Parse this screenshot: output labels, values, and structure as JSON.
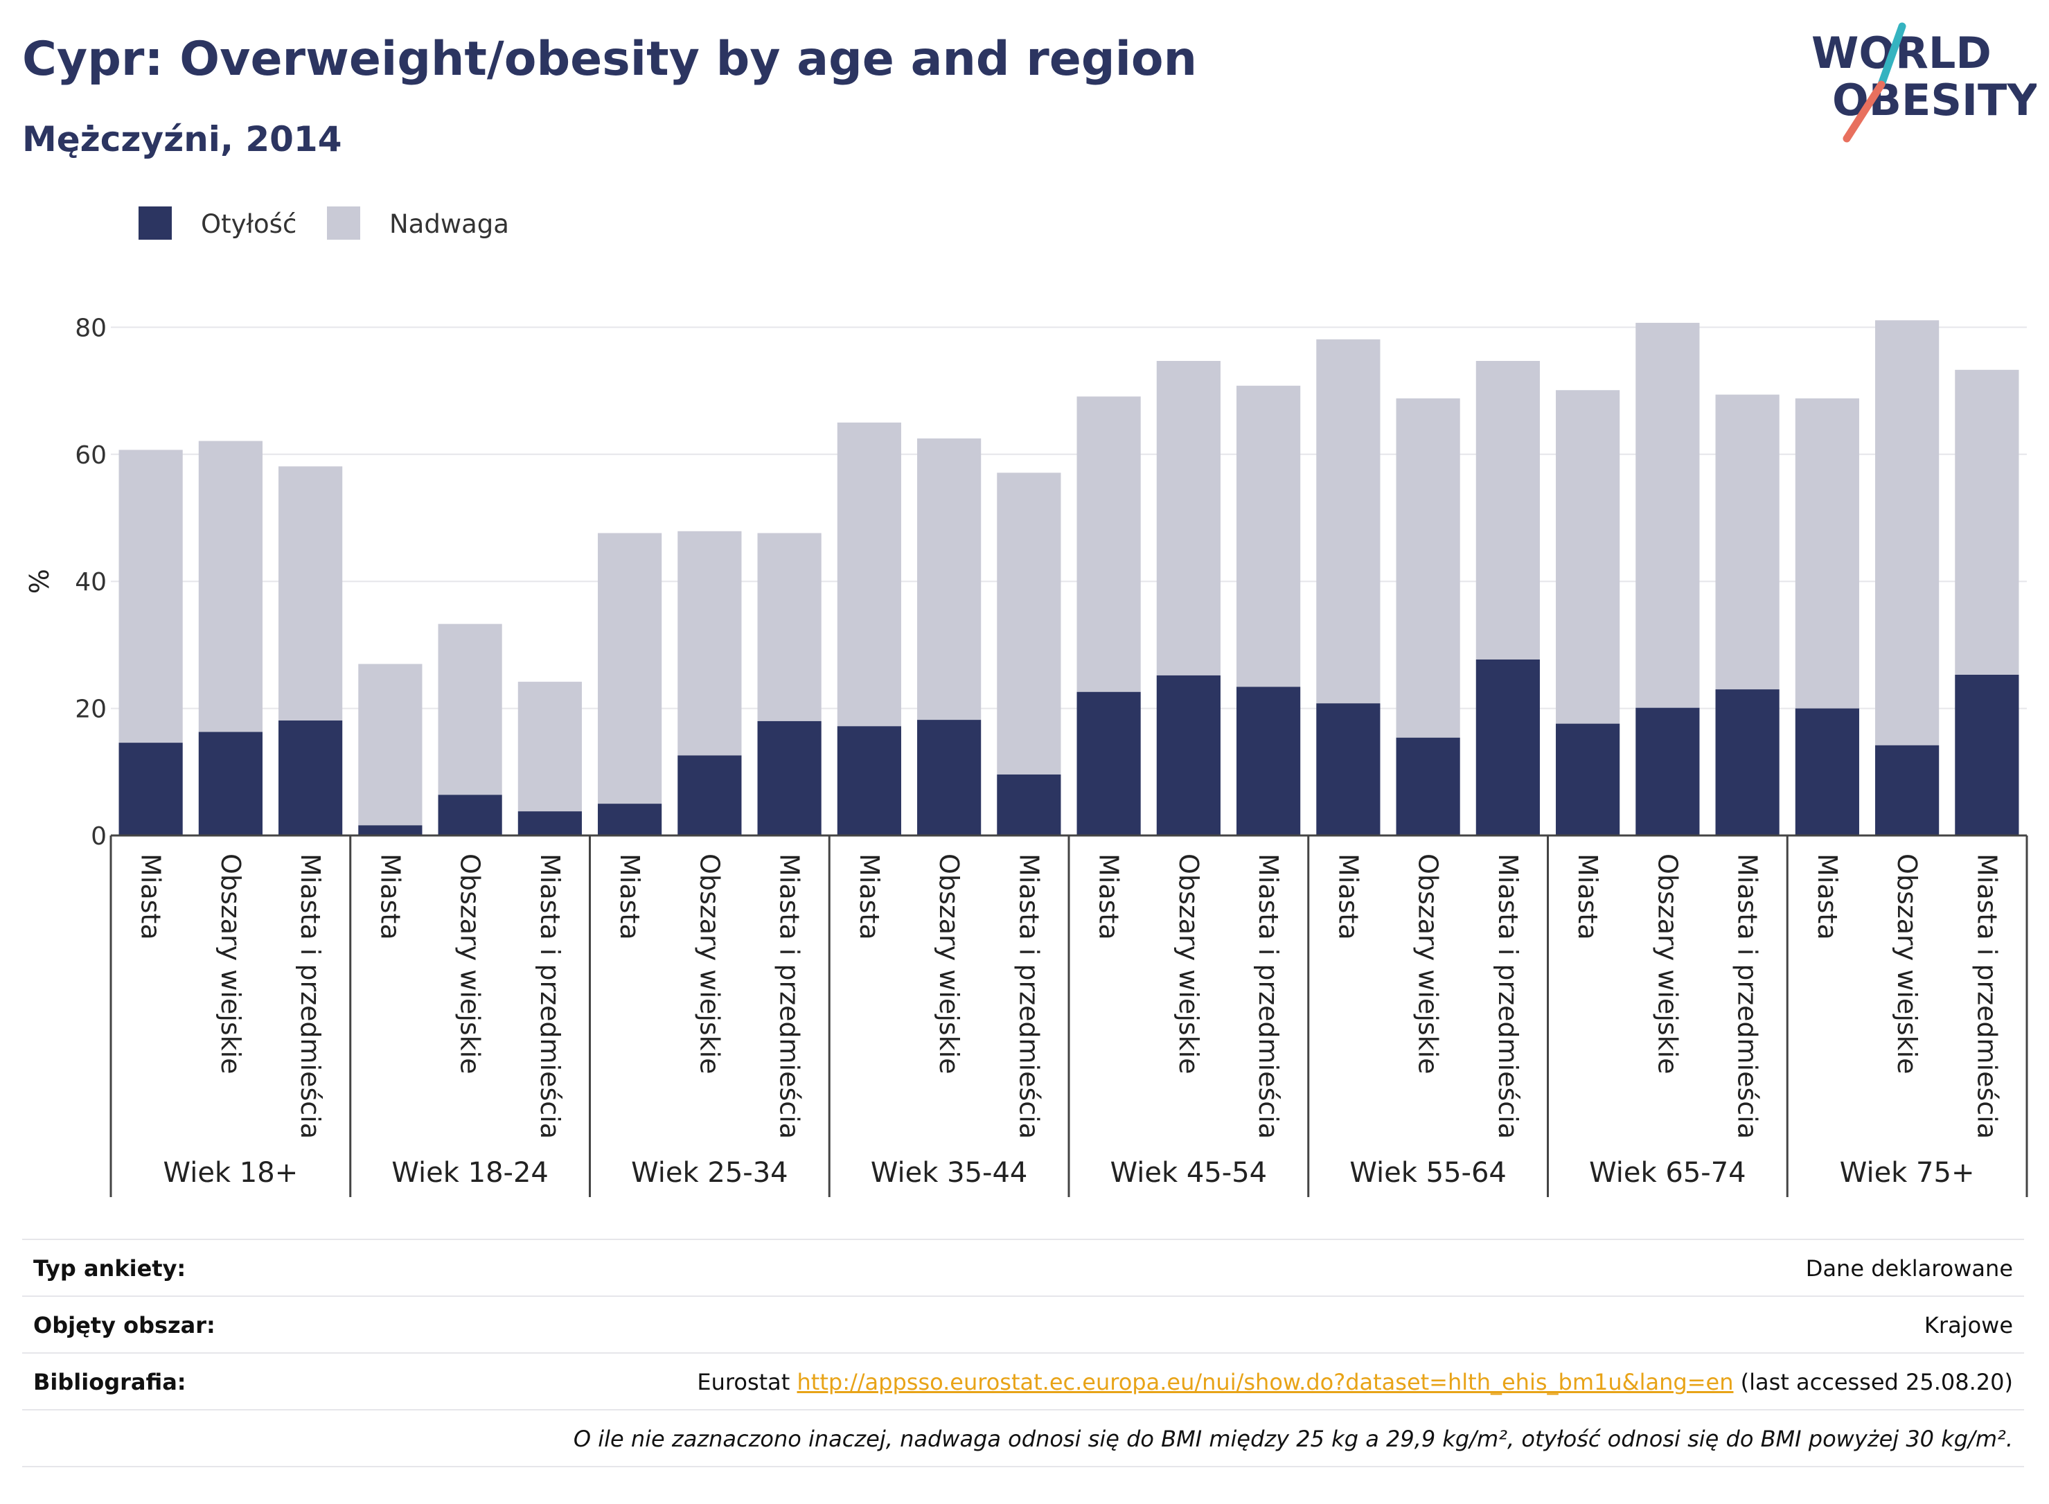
{
  "header": {
    "title": "Cypr: Overweight/obesity by age and region",
    "subtitle": "Mężczyźni, 2014"
  },
  "logo": {
    "line1": "WORLD",
    "line2": "OBESITY",
    "accent_teal": "#35b3c0",
    "accent_coral": "#e8705e",
    "text_color": "#2c3561"
  },
  "colors": {
    "obesity": "#2c3561",
    "overweight": "#c9cad6",
    "grid": "#e6e6ea",
    "axis": "#444444"
  },
  "legend": {
    "items": [
      {
        "label": "Otyłość",
        "color": "#2c3561"
      },
      {
        "label": "Nadwaga",
        "color": "#c9cad6"
      }
    ]
  },
  "chart_data": {
    "type": "bar",
    "stacked": true,
    "ylabel": "%",
    "xlabel": "",
    "ylim": [
      0,
      84
    ],
    "yticks": [
      0,
      20,
      40,
      60,
      80
    ],
    "grid": true,
    "legend_position": "top-left",
    "groups": [
      "Wiek 18+",
      "Wiek 18-24",
      "Wiek 25-34",
      "Wiek 35-44",
      "Wiek 45-54",
      "Wiek 55-64",
      "Wiek 65-74",
      "Wiek 75+"
    ],
    "subcategories": [
      "Miasta",
      "Obszary wiejskie",
      "Miasta i przedmieścia"
    ],
    "series": [
      {
        "name": "Otyłość",
        "color": "#2c3561",
        "values": [
          [
            14.6,
            16.3,
            18.1
          ],
          [
            1.6,
            6.4,
            3.8
          ],
          [
            5.0,
            12.6,
            18.0
          ],
          [
            17.2,
            18.2,
            9.6
          ],
          [
            22.6,
            25.2,
            23.4
          ],
          [
            20.8,
            15.4,
            27.7
          ],
          [
            17.6,
            20.1,
            23.0
          ],
          [
            20.0,
            14.2,
            25.3
          ]
        ]
      },
      {
        "name": "Nadwaga",
        "color": "#c9cad6",
        "values": [
          [
            46.1,
            45.8,
            40.0
          ],
          [
            25.4,
            26.9,
            20.4
          ],
          [
            42.6,
            35.3,
            29.6
          ],
          [
            47.8,
            44.3,
            47.5
          ],
          [
            46.5,
            49.5,
            47.4
          ],
          [
            57.3,
            53.4,
            47.0
          ],
          [
            52.5,
            60.6,
            46.4
          ],
          [
            48.8,
            66.9,
            48.0
          ]
        ]
      }
    ]
  },
  "meta": {
    "survey_type": {
      "label": "Typ ankiety:",
      "value": "Dane deklarowane"
    },
    "coverage": {
      "label": "Objęty obszar:",
      "value": "Krajowe"
    },
    "bibliography": {
      "label": "Bibliografia:",
      "prefix": "Eurostat ",
      "link": "http://appsso.eurostat.ec.europa.eu/nui/show.do?dataset=hlth_ehis_bm1u&lang=en",
      "suffix": " (last accessed 25.08.20)"
    },
    "note": "O ile nie zaznaczono inaczej, nadwaga odnosi się do BMI między 25 kg a 29,9 kg/m², otyłość odnosi się do BMI powyżej 30 kg/m²."
  }
}
